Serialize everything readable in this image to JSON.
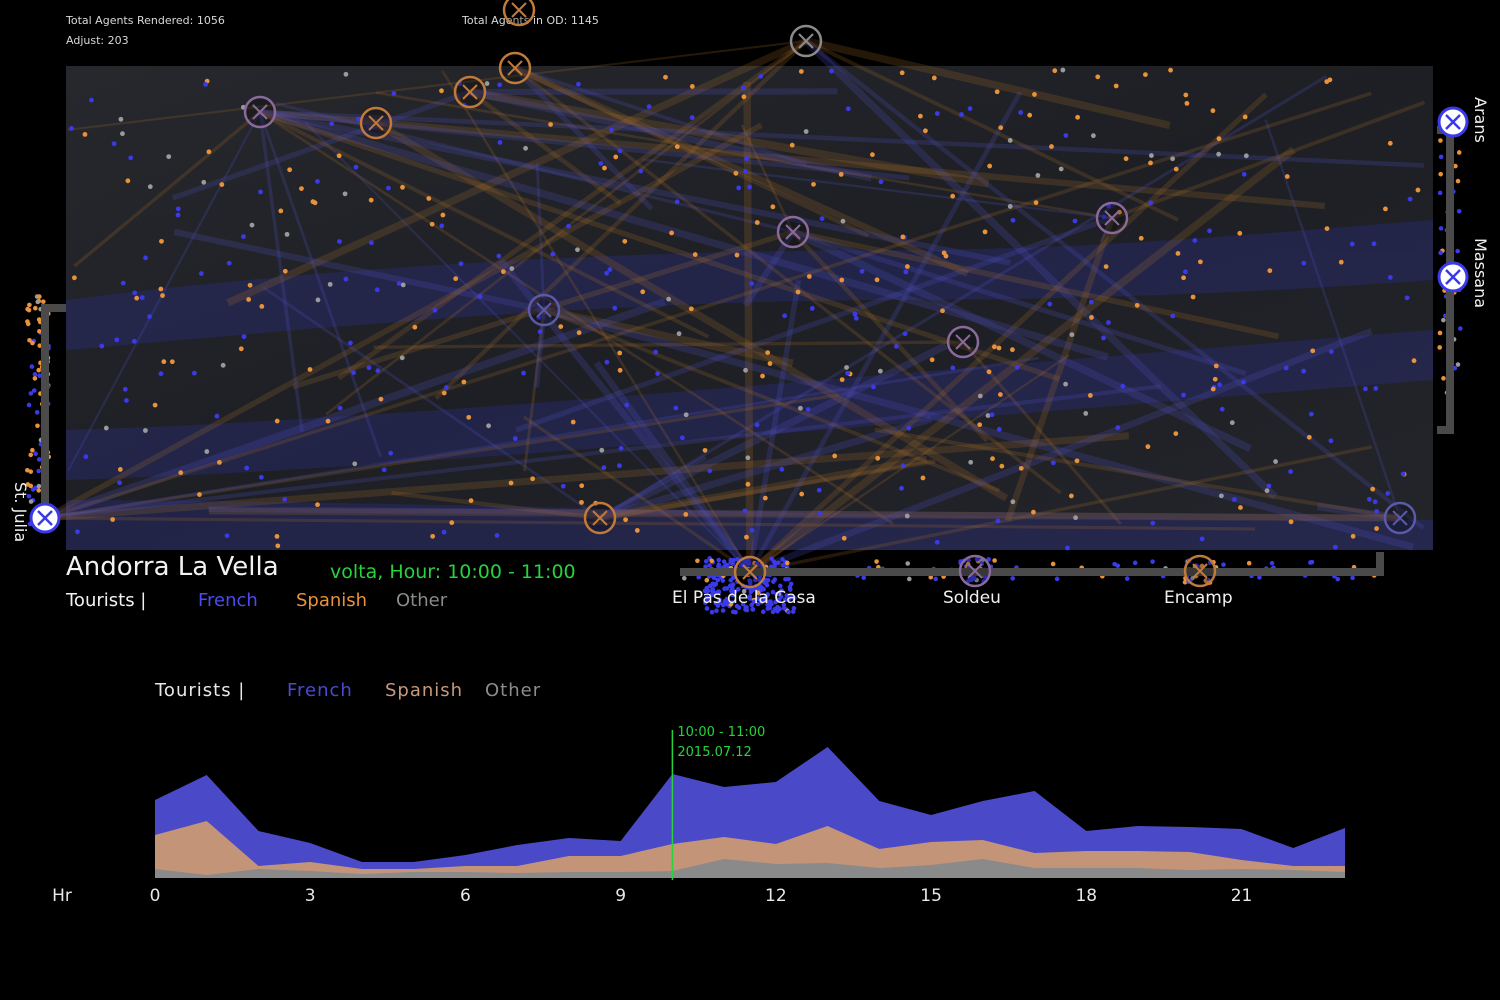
{
  "stats": {
    "rendered": "Total Agents Rendered: 1056",
    "adjust": "Adjust: 203",
    "in_od": "Total Agents in OD: 1145"
  },
  "map": {
    "title": "Andorra La Vella",
    "hour_label": "volta, Hour: 10:00 - 11:00",
    "legend": {
      "tourists": "Tourists |",
      "french": "French",
      "spanish": "Spanish",
      "other": "Other"
    },
    "stations": {
      "el_pas": "El Pas de la Casa",
      "soldeu": "Soldeu",
      "encamp": "Encamp",
      "arans": "Arans",
      "massana": "Massana",
      "st_julia": "St. Julia"
    }
  },
  "colors": {
    "french": "#3a3ae8",
    "spanish": "#e8923a",
    "other": "#8a8a8a",
    "hour_green": "#28d23c"
  },
  "chart_legend": {
    "tourists": "Tourists |",
    "french": "French",
    "spanish": "Spanish",
    "other": "Other"
  },
  "marker": {
    "time": "10:00 - 11:00",
    "date": "2015.07.12"
  },
  "chart_data": {
    "type": "area",
    "xlabel": "Hr",
    "x": [
      0,
      1,
      2,
      3,
      4,
      5,
      6,
      7,
      8,
      9,
      10,
      11,
      12,
      13,
      14,
      15,
      16,
      17,
      18,
      19,
      20,
      21,
      22,
      23
    ],
    "xticks": [
      0,
      3,
      6,
      9,
      12,
      15,
      18,
      21
    ],
    "marker_x": 10,
    "series": [
      {
        "name": "French",
        "values": [
          78,
          103,
          47,
          35,
          16,
          16,
          23,
          33,
          40,
          37,
          104,
          91,
          96,
          131,
          77,
          63,
          77,
          87,
          47,
          52,
          51,
          49,
          30,
          50
        ]
      },
      {
        "name": "Spanish",
        "values": [
          43,
          57,
          12,
          16,
          9,
          9,
          12,
          12,
          22,
          22,
          34,
          41,
          34,
          52,
          29,
          36,
          38,
          25,
          27,
          27,
          26,
          18,
          12,
          12
        ]
      },
      {
        "name": "Other",
        "values": [
          9,
          3,
          9,
          7,
          4,
          6,
          6,
          5,
          6,
          6,
          7,
          19,
          14,
          15,
          10,
          13,
          19,
          10,
          10,
          10,
          8,
          9,
          8,
          6
        ]
      }
    ]
  }
}
